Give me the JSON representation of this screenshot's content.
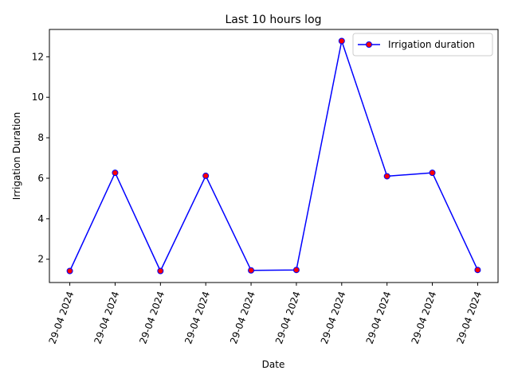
{
  "chart_data": {
    "type": "line",
    "title": "Last 10 hours log",
    "xlabel": "Date",
    "ylabel": "Irrigation Duration",
    "categories": [
      "29-04 2024",
      "29-04 2024",
      "29-04 2024",
      "29-04 2024",
      "29-04 2024",
      "29-04 2024",
      "29-04 2024",
      "29-04 2024",
      "29-04 2024",
      "29-04 2024"
    ],
    "series": [
      {
        "name": "Irrigation duration",
        "values": [
          1.42,
          6.27,
          1.42,
          6.12,
          1.45,
          1.47,
          12.78,
          6.1,
          6.27,
          1.47
        ],
        "line_color": "#0000ff",
        "marker_face_color": "#ff0000",
        "marker_edge_color": "#0000ff"
      }
    ],
    "yticks": [
      2,
      4,
      6,
      8,
      10,
      12
    ],
    "ylim": [
      0.85,
      13.35
    ],
    "grid": false,
    "legend_position": "upper right"
  }
}
